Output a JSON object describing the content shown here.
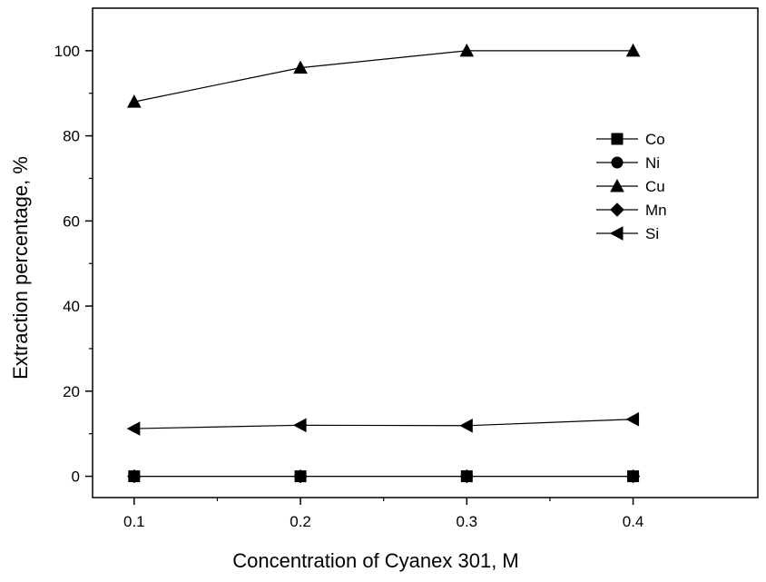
{
  "chart_data": {
    "type": "line",
    "title": "",
    "xlabel": "Concentration of Cyanex 301, M",
    "ylabel": "Extraction percentage, %",
    "x": [
      0.1,
      0.2,
      0.3,
      0.4
    ],
    "xlim": [
      0.075,
      0.475
    ],
    "ylim": [
      -5,
      110
    ],
    "x_ticks": [
      0.1,
      0.2,
      0.3,
      0.4
    ],
    "x_tick_labels": [
      "0.1",
      "0.2",
      "0.3",
      "0.4"
    ],
    "y_ticks": [
      0,
      20,
      40,
      60,
      80,
      100
    ],
    "y_tick_labels": [
      "0",
      "20",
      "40",
      "60",
      "80",
      "100"
    ],
    "grid": false,
    "legend_position": "right",
    "series": [
      {
        "name": "Co",
        "marker": "square",
        "values": [
          0,
          0,
          0,
          0
        ]
      },
      {
        "name": "Ni",
        "marker": "circle",
        "values": [
          0,
          0,
          0,
          0
        ]
      },
      {
        "name": "Cu",
        "marker": "triangle-up",
        "values": [
          88,
          96,
          100,
          100
        ]
      },
      {
        "name": "Mn",
        "marker": "diamond",
        "values": [
          0,
          0,
          0,
          0
        ]
      },
      {
        "name": "Si",
        "marker": "triangle-left",
        "values": [
          11.2,
          12,
          11.9,
          13.4
        ]
      }
    ],
    "colors": {
      "line": "#000000",
      "marker": "#000000",
      "axis": "#000000"
    }
  }
}
